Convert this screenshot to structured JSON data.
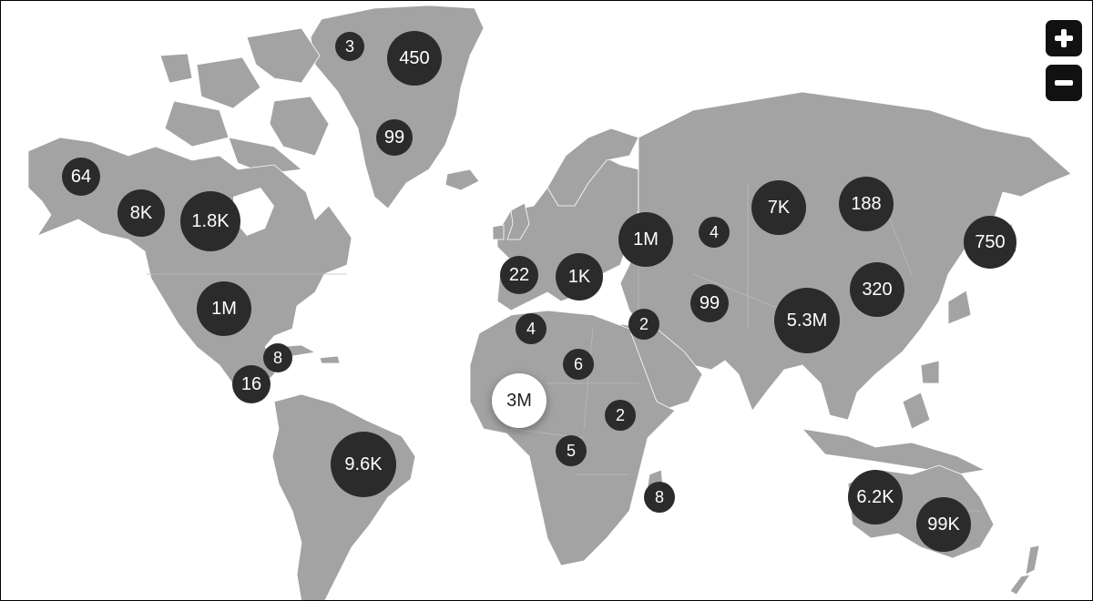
{
  "map": {
    "land_color": "#a3a3a3",
    "bubble_color": "#2b2b2b",
    "selected_color": "#ffffff",
    "clusters": [
      {
        "id": "greenland-nw",
        "label": "3"
      },
      {
        "id": "greenland-ne",
        "label": "450"
      },
      {
        "id": "greenland-s",
        "label": "99"
      },
      {
        "id": "alaska",
        "label": "64"
      },
      {
        "id": "canada-w",
        "label": "8K"
      },
      {
        "id": "canada-c",
        "label": "1.8K"
      },
      {
        "id": "usa",
        "label": "1M"
      },
      {
        "id": "caribbean",
        "label": "8"
      },
      {
        "id": "central-america",
        "label": "16"
      },
      {
        "id": "brazil",
        "label": "9.6K"
      },
      {
        "id": "western-europe",
        "label": "22"
      },
      {
        "id": "central-europe",
        "label": "1K"
      },
      {
        "id": "russia-w",
        "label": "1M"
      },
      {
        "id": "kazakhstan-n",
        "label": "4"
      },
      {
        "id": "siberia-w",
        "label": "7K"
      },
      {
        "id": "siberia-e",
        "label": "188"
      },
      {
        "id": "kamchatka",
        "label": "750"
      },
      {
        "id": "central-asia",
        "label": "99"
      },
      {
        "id": "middle-east",
        "label": "2"
      },
      {
        "id": "china",
        "label": "5.3M"
      },
      {
        "id": "korea",
        "label": "320"
      },
      {
        "id": "north-africa",
        "label": "4"
      },
      {
        "id": "sahel",
        "label": "6"
      },
      {
        "id": "west-africa",
        "label": "3M",
        "selected": true
      },
      {
        "id": "east-africa",
        "label": "2"
      },
      {
        "id": "central-africa",
        "label": "5"
      },
      {
        "id": "madagascar",
        "label": "8"
      },
      {
        "id": "australia-w",
        "label": "6.2K"
      },
      {
        "id": "australia-e",
        "label": "99K"
      }
    ]
  },
  "controls": {
    "zoom_in_icon": "plus-icon",
    "zoom_out_icon": "minus-icon"
  }
}
